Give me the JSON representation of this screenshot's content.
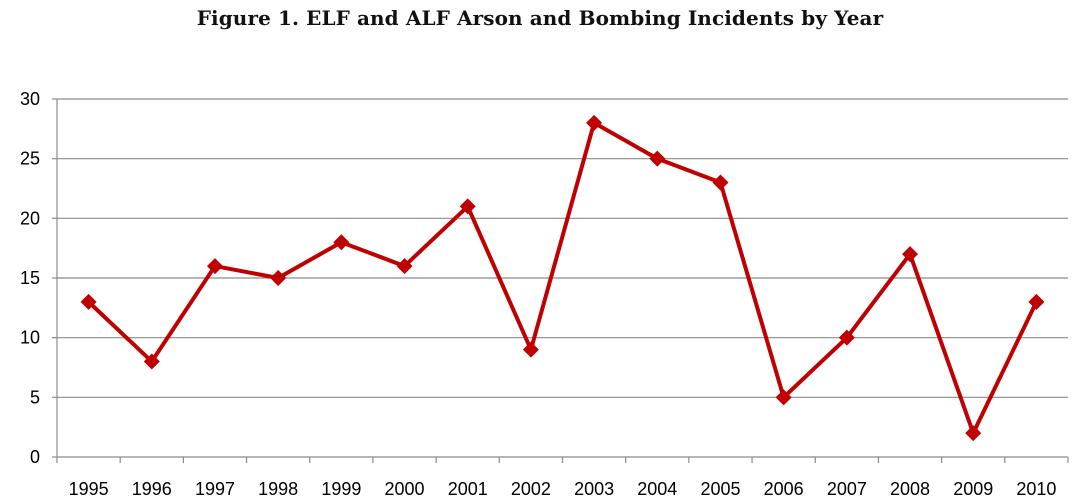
{
  "chart_data": {
    "type": "line",
    "title": "Figure 1. ELF and ALF Arson and Bombing Incidents by Year",
    "xlabel": "",
    "ylabel": "",
    "categories": [
      "1995",
      "1996",
      "1997",
      "1998",
      "1999",
      "2000",
      "2001",
      "2002",
      "2003",
      "2004",
      "2005",
      "2006",
      "2007",
      "2008",
      "2009",
      "2010"
    ],
    "series": [
      {
        "values": [
          13,
          8,
          16,
          15,
          18,
          16,
          21,
          9,
          28,
          25,
          23,
          5,
          10,
          17,
          2,
          13
        ]
      }
    ],
    "ylim": [
      0,
      30
    ],
    "yticks": [
      0,
      5,
      10,
      15,
      20,
      25,
      30
    ],
    "grid": "horizontal",
    "legend": "none",
    "colors": {
      "line": "#c00000",
      "marker": "#c00000",
      "grid": "#8c8c8c",
      "axis": "#8c8c8c"
    },
    "marker": "diamond"
  }
}
